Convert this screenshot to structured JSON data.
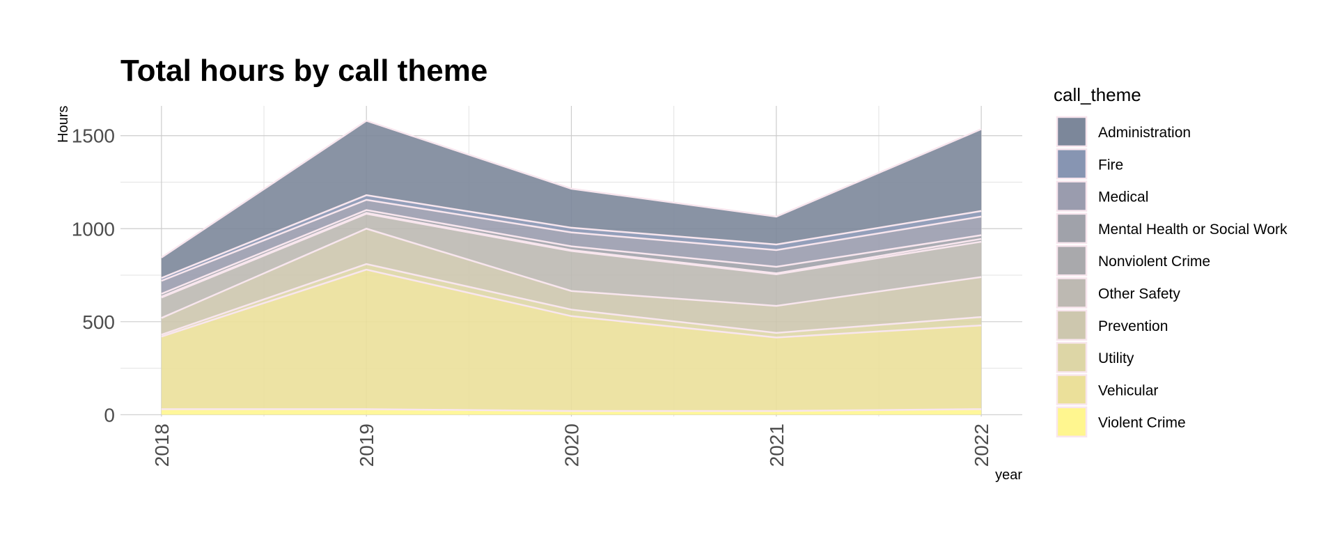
{
  "chart_data": {
    "type": "area",
    "title": "Total hours by call theme",
    "xlabel": "year",
    "ylabel": "Hours",
    "x": [
      2018,
      2019,
      2020,
      2021,
      2022
    ],
    "x_tick_labels": [
      "2018",
      "2019",
      "2020",
      "2021",
      "2022"
    ],
    "ylim": [
      -10,
      1660
    ],
    "y_ticks": [
      0,
      500,
      1000,
      1500
    ],
    "y_tick_labels": [
      "0",
      "500",
      "1000",
      "1500"
    ],
    "stacked": true,
    "grid": true,
    "legend_title": "call_theme",
    "legend_position": "right",
    "series": [
      {
        "name": "Violent Crime",
        "color": "#FFF68F",
        "values": [
          30,
          30,
          20,
          20,
          30
        ]
      },
      {
        "name": "Vehicular",
        "color": "#EBE09A",
        "values": [
          390,
          750,
          510,
          395,
          450
        ]
      },
      {
        "name": "Utility",
        "color": "#DDD6A6",
        "values": [
          10,
          30,
          35,
          25,
          45
        ]
      },
      {
        "name": "Prevention",
        "color": "#CDC7AE",
        "values": [
          90,
          190,
          100,
          145,
          215
        ]
      },
      {
        "name": "Other Safety",
        "color": "#BDB9B2",
        "values": [
          110,
          80,
          215,
          170,
          190
        ]
      },
      {
        "name": "Nonviolent Crime",
        "color": "#A9A9AC",
        "values": [
          5,
          5,
          5,
          5,
          15
        ]
      },
      {
        "name": "Mental Health or Social Work",
        "color": "#A0A2AA",
        "values": [
          15,
          15,
          20,
          35,
          20
        ]
      },
      {
        "name": "Medical",
        "color": "#9A9CAE",
        "values": [
          70,
          55,
          75,
          90,
          100
        ]
      },
      {
        "name": "Fire",
        "color": "#8795B2",
        "values": [
          15,
          25,
          25,
          30,
          30
        ]
      },
      {
        "name": "Administration",
        "color": "#7C879A",
        "values": [
          110,
          400,
          210,
          150,
          440
        ]
      }
    ]
  }
}
